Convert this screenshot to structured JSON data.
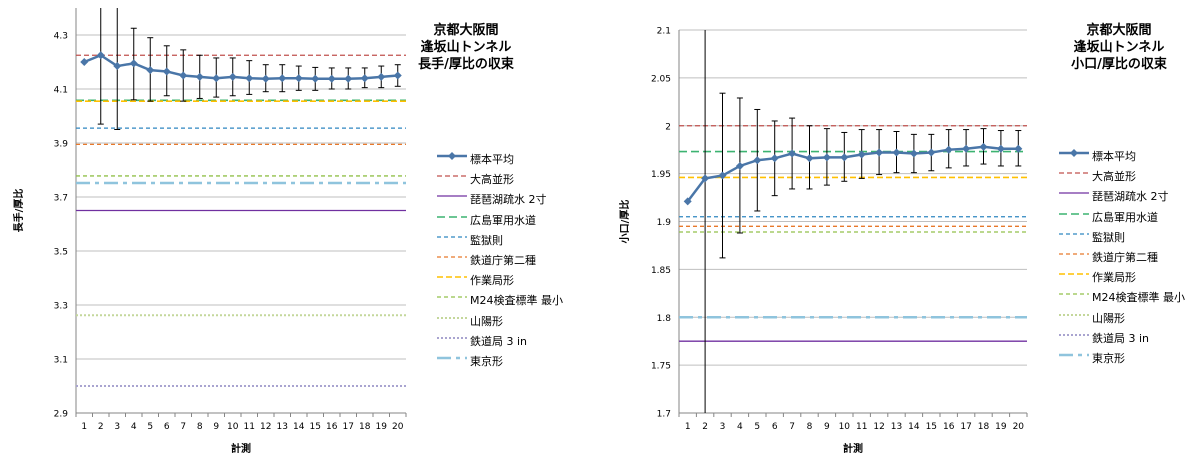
{
  "chart_data": [
    {
      "type": "line",
      "title": [
        "京都大阪間",
        "逢坂山トンネル",
        "長手/厚比の収束"
      ],
      "xlabel": "計測",
      "ylabel": "長手/厚比",
      "ylim": [
        2.9,
        4.4
      ],
      "yticks": [
        2.9,
        3.1,
        3.3,
        3.5,
        3.7,
        3.9,
        4.1,
        4.3
      ],
      "ytick_labels": [
        "2.9",
        "3.1",
        "3.3",
        "3.5",
        "3.7",
        "3.9",
        "4.1",
        "4.3"
      ],
      "x": [
        1,
        2,
        3,
        4,
        5,
        6,
        7,
        8,
        9,
        10,
        11,
        12,
        13,
        14,
        15,
        16,
        17,
        18,
        19,
        20
      ],
      "x_labels": [
        "1",
        "2",
        "3",
        "4",
        "5",
        "6",
        "7",
        "8",
        "9",
        "10",
        "11",
        "12",
        "13",
        "14",
        "15",
        "16",
        "17",
        "18",
        "19",
        "20"
      ],
      "grid": true,
      "legend_position": "right",
      "series": [
        {
          "name": "標本平均",
          "kind": "mean",
          "color": "#4a76a8",
          "values": [
            4.2,
            4.225,
            4.185,
            4.195,
            4.17,
            4.165,
            4.15,
            4.145,
            4.14,
            4.145,
            4.14,
            4.138,
            4.14,
            4.14,
            4.138,
            4.138,
            4.138,
            4.14,
            4.145,
            4.15
          ],
          "err_low": [
            null,
            3.97,
            3.95,
            4.06,
            4.055,
            4.075,
            4.055,
            4.065,
            4.07,
            4.075,
            4.08,
            4.09,
            4.09,
            4.095,
            4.095,
            4.1,
            4.1,
            4.105,
            4.105,
            4.11
          ],
          "err_high": [
            null,
            4.5,
            4.5,
            4.325,
            4.29,
            4.26,
            4.245,
            4.225,
            4.215,
            4.215,
            4.205,
            4.19,
            4.19,
            4.185,
            4.18,
            4.178,
            4.178,
            4.178,
            4.185,
            4.19
          ]
        },
        {
          "name": "大高並形",
          "kind": "ref",
          "color": "#c0504d",
          "dash": "5,3",
          "width": 1.3,
          "value": 4.225
        },
        {
          "name": "琵琶湖疏水 2寸",
          "kind": "ref",
          "color": "#7030a0",
          "dash": "",
          "width": 1.3,
          "value": 3.65
        },
        {
          "name": "広島軍用水道",
          "kind": "ref",
          "color": "#3cb371",
          "dash": "8,4",
          "width": 1.6,
          "value": 4.058
        },
        {
          "name": "監獄則",
          "kind": "ref",
          "color": "#2e86c1",
          "dash": "4,3",
          "width": 1.3,
          "value": 3.955
        },
        {
          "name": "鉄道庁第二種",
          "kind": "ref",
          "color": "#e8792b",
          "dash": "4,3",
          "width": 1.3,
          "value": 3.895
        },
        {
          "name": "作業局形",
          "kind": "ref",
          "color": "#ffc000",
          "dash": "6,3",
          "width": 1.6,
          "value": 4.055
        },
        {
          "name": "M24検査標準 最小",
          "kind": "ref",
          "color": "#92c04a",
          "dash": "4,3",
          "width": 1.3,
          "value": 3.778
        },
        {
          "name": "山陽形",
          "kind": "ref",
          "color": "#c4d79b",
          "dash": "2,2",
          "width": 2,
          "value": 3.262
        },
        {
          "name": "鉄道局 3 in",
          "kind": "ref",
          "color": "#a9a4d0",
          "dash": "2,2",
          "width": 2,
          "value": 3.0
        },
        {
          "name": "東京形",
          "kind": "ref",
          "color": "#8fc4dd",
          "dash": "14,5,4,5",
          "width": 2.5,
          "value": 3.752
        }
      ]
    },
    {
      "type": "line",
      "title": [
        "京都大阪間",
        "逢坂山トンネル",
        "小口/厚比の収束"
      ],
      "xlabel": "計測",
      "ylabel": "小口/厚比",
      "ylim": [
        1.7,
        2.1
      ],
      "yticks": [
        1.7,
        1.75,
        1.8,
        1.85,
        1.9,
        1.95,
        2.0,
        2.05,
        2.1
      ],
      "ytick_labels": [
        "1.7",
        "1.75",
        "1.8",
        "1.85",
        "1.9",
        "1.95",
        "2",
        "2.05",
        "2.1"
      ],
      "x": [
        1,
        2,
        3,
        4,
        5,
        6,
        7,
        8,
        9,
        10,
        11,
        12,
        13,
        14,
        15,
        16,
        17,
        18,
        19,
        20
      ],
      "x_labels": [
        "1",
        "2",
        "3",
        "4",
        "5",
        "6",
        "7",
        "8",
        "9",
        "10",
        "11",
        "12",
        "13",
        "14",
        "15",
        "16",
        "17",
        "18",
        "19",
        "20"
      ],
      "grid": true,
      "legend_position": "right",
      "series": [
        {
          "name": "標本平均",
          "kind": "mean",
          "color": "#4a76a8",
          "values": [
            1.921,
            1.945,
            1.948,
            1.958,
            1.964,
            1.966,
            1.971,
            1.966,
            1.967,
            1.967,
            1.97,
            1.972,
            1.972,
            1.971,
            1.972,
            1.975,
            1.976,
            1.978,
            1.976,
            1.976
          ],
          "err_low": [
            null,
            1.7,
            1.862,
            1.888,
            1.911,
            1.927,
            1.934,
            1.934,
            1.938,
            1.942,
            1.945,
            1.949,
            1.951,
            1.951,
            1.953,
            1.956,
            1.958,
            1.96,
            1.958,
            1.958
          ],
          "err_high": [
            null,
            2.1,
            2.034,
            2.029,
            2.017,
            2.005,
            2.008,
            2.0,
            1.997,
            1.993,
            1.996,
            1.996,
            1.994,
            1.991,
            1.991,
            1.996,
            1.996,
            1.997,
            1.995,
            1.995
          ]
        },
        {
          "name": "大高並形",
          "kind": "ref",
          "color": "#c0504d",
          "dash": "5,3",
          "width": 1.3,
          "value": 2.0
        },
        {
          "name": "琵琶湖疏水 2寸",
          "kind": "ref",
          "color": "#7030a0",
          "dash": "",
          "width": 1.3,
          "value": 1.775
        },
        {
          "name": "広島軍用水道",
          "kind": "ref",
          "color": "#3cb371",
          "dash": "8,4",
          "width": 1.6,
          "value": 1.973
        },
        {
          "name": "監獄則",
          "kind": "ref",
          "color": "#2e86c1",
          "dash": "4,3",
          "width": 1.3,
          "value": 1.905
        },
        {
          "name": "鉄道庁第二種",
          "kind": "ref",
          "color": "#e8792b",
          "dash": "4,3",
          "width": 1.3,
          "value": 1.895
        },
        {
          "name": "作業局形",
          "kind": "ref",
          "color": "#ffc000",
          "dash": "6,3",
          "width": 1.6,
          "value": 1.946
        },
        {
          "name": "M24検査標準 最小",
          "kind": "ref",
          "color": "#92c04a",
          "dash": "4,3",
          "width": 1.3,
          "value": 1.889
        },
        {
          "name": "山陽形",
          "kind": "ref",
          "color": "#c4d79b",
          "dash": "2,2",
          "width": 2,
          "value": null
        },
        {
          "name": "鉄道局 3 in",
          "kind": "ref",
          "color": "#a9a4d0",
          "dash": "2,2",
          "width": 2,
          "value": null
        },
        {
          "name": "東京形",
          "kind": "ref",
          "color": "#8fc4dd",
          "dash": "14,5,4,5",
          "width": 2.5,
          "value": 1.8
        }
      ]
    }
  ]
}
